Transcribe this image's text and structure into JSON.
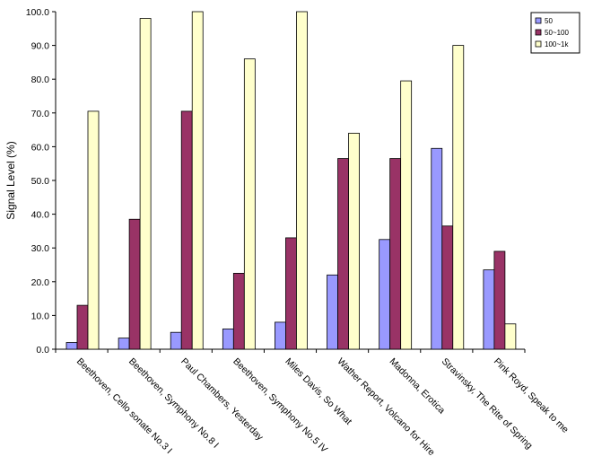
{
  "chart_data": {
    "type": "bar",
    "title": "",
    "xlabel": "",
    "ylabel": "Signal Level (%)",
    "ylim": [
      0,
      100
    ],
    "yticks": [
      "0.0",
      "10.0",
      "20.0",
      "30.0",
      "40.0",
      "50.0",
      "60.0",
      "70.0",
      "80.0",
      "90.0",
      "100.0"
    ],
    "grid": false,
    "legend_position": "top-right",
    "categories": [
      "Beethoven, Cello sonate No.3 I",
      "Beethoven, Symphony No.8 I",
      "Paul Chambers, Yesterday",
      "Beethoven, Symphony No.5 IV",
      "Miles Davis, So What",
      "Wather Report, Volcano for Hire",
      "Madonna, Erotica",
      "Stravinsky, The Rite of Spring",
      "Pink Royd, Speak to me"
    ],
    "series": [
      {
        "name": "50",
        "color": "#9999ff",
        "values": [
          2.0,
          3.3,
          5.0,
          6.0,
          8.0,
          22.0,
          32.5,
          59.5,
          23.5
        ]
      },
      {
        "name": "50~100",
        "color": "#993366",
        "values": [
          13.0,
          38.5,
          70.5,
          22.5,
          33.0,
          56.5,
          56.5,
          36.5,
          29.0
        ]
      },
      {
        "name": "100~1k",
        "color": "#ffffcc",
        "values": [
          70.5,
          98.0,
          100.0,
          86.0,
          100.0,
          64.0,
          79.5,
          90.0,
          7.5
        ]
      }
    ]
  }
}
